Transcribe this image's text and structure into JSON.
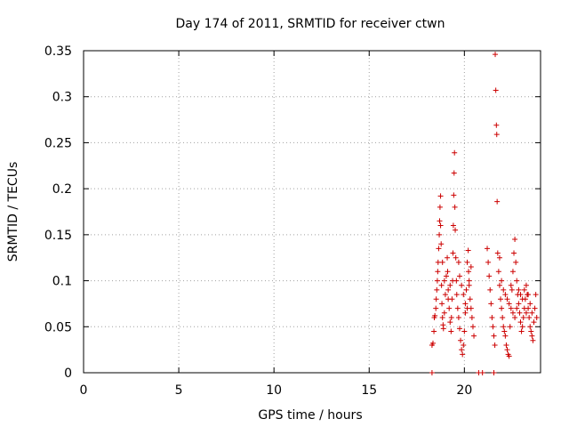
{
  "chart_data": {
    "type": "scatter",
    "title": "Day 174 of 2011, SRMTID for receiver ctwn",
    "xlabel": "GPS time / hours",
    "ylabel": "SRMTID / TECUs",
    "xlim": [
      0,
      24
    ],
    "ylim": [
      0,
      0.35
    ],
    "xticks": [
      0,
      5,
      10,
      15,
      20
    ],
    "xtick_labels": [
      "0",
      "5",
      "10",
      "15",
      "20"
    ],
    "yticks": [
      0,
      0.05,
      0.1,
      0.15,
      0.2,
      0.25,
      0.3,
      0.35
    ],
    "ytick_labels": [
      "0",
      "0.05",
      "0.1",
      "0.15",
      "0.2",
      "0.25",
      "0.3",
      "0.35"
    ],
    "grid": true,
    "marker": "+",
    "series": [
      {
        "name": "SRMTID",
        "color": "#cc0000",
        "points": [
          [
            18.3,
            0.03
          ],
          [
            18.35,
            0.032
          ],
          [
            18.4,
            0.045
          ],
          [
            18.42,
            0.06
          ],
          [
            18.45,
            0.062
          ],
          [
            18.5,
            0.07
          ],
          [
            18.52,
            0.08
          ],
          [
            18.55,
            0.09
          ],
          [
            18.58,
            0.1
          ],
          [
            18.6,
            0.11
          ],
          [
            18.62,
            0.12
          ],
          [
            18.65,
            0.135
          ],
          [
            18.68,
            0.15
          ],
          [
            18.7,
            0.165
          ],
          [
            18.72,
            0.18
          ],
          [
            18.75,
            0.192
          ],
          [
            18.78,
            0.14
          ],
          [
            18.8,
            0.095
          ],
          [
            18.82,
            0.075
          ],
          [
            18.85,
            0.06
          ],
          [
            18.88,
            0.052
          ],
          [
            18.9,
            0.048
          ],
          [
            18.95,
            0.065
          ],
          [
            19.0,
            0.085
          ],
          [
            19.05,
            0.105
          ],
          [
            19.1,
            0.125
          ],
          [
            19.12,
            0.11
          ],
          [
            19.15,
            0.09
          ],
          [
            19.2,
            0.07
          ],
          [
            19.25,
            0.055
          ],
          [
            19.3,
            0.045
          ],
          [
            19.32,
            0.06
          ],
          [
            19.35,
            0.08
          ],
          [
            19.38,
            0.1
          ],
          [
            19.4,
            0.13
          ],
          [
            19.42,
            0.16
          ],
          [
            19.44,
            0.193
          ],
          [
            19.46,
            0.217
          ],
          [
            19.48,
            0.239
          ],
          [
            19.5,
            0.18
          ],
          [
            19.52,
            0.155
          ],
          [
            19.55,
            0.125
          ],
          [
            19.58,
            0.1
          ],
          [
            19.6,
            0.085
          ],
          [
            19.65,
            0.07
          ],
          [
            19.7,
            0.06
          ],
          [
            19.75,
            0.048
          ],
          [
            19.8,
            0.035
          ],
          [
            19.85,
            0.025
          ],
          [
            19.9,
            0.02
          ],
          [
            19.95,
            0.03
          ],
          [
            20.0,
            0.045
          ],
          [
            20.05,
            0.065
          ],
          [
            20.1,
            0.09
          ],
          [
            20.15,
            0.12
          ],
          [
            20.2,
            0.133
          ],
          [
            20.22,
            0.11
          ],
          [
            20.25,
            0.095
          ],
          [
            20.3,
            0.08
          ],
          [
            20.35,
            0.07
          ],
          [
            20.4,
            0.06
          ],
          [
            20.45,
            0.05
          ],
          [
            20.5,
            0.04
          ],
          [
            19.7,
            0.12
          ],
          [
            19.75,
            0.105
          ],
          [
            19.85,
            0.095
          ],
          [
            19.95,
            0.085
          ],
          [
            20.05,
            0.075
          ],
          [
            20.15,
            0.07
          ],
          [
            20.25,
            0.1
          ],
          [
            20.35,
            0.115
          ],
          [
            19.25,
            0.095
          ],
          [
            19.15,
            0.08
          ],
          [
            18.95,
            0.1
          ],
          [
            18.85,
            0.12
          ],
          [
            18.75,
            0.16
          ],
          [
            21.2,
            0.135
          ],
          [
            21.25,
            0.12
          ],
          [
            21.3,
            0.105
          ],
          [
            21.35,
            0.09
          ],
          [
            21.4,
            0.075
          ],
          [
            21.45,
            0.06
          ],
          [
            21.5,
            0.05
          ],
          [
            21.55,
            0.04
          ],
          [
            21.6,
            0.03
          ],
          [
            21.62,
            0.346
          ],
          [
            21.65,
            0.307
          ],
          [
            21.68,
            0.269
          ],
          [
            21.7,
            0.259
          ],
          [
            21.72,
            0.186
          ],
          [
            21.75,
            0.13
          ],
          [
            21.8,
            0.11
          ],
          [
            21.85,
            0.095
          ],
          [
            21.9,
            0.08
          ],
          [
            21.95,
            0.07
          ],
          [
            22.0,
            0.06
          ],
          [
            22.05,
            0.05
          ],
          [
            22.1,
            0.045
          ],
          [
            22.15,
            0.04
          ],
          [
            22.2,
            0.03
          ],
          [
            22.25,
            0.025
          ],
          [
            22.3,
            0.02
          ],
          [
            22.35,
            0.018
          ],
          [
            22.4,
            0.05
          ],
          [
            22.45,
            0.07
          ],
          [
            22.5,
            0.09
          ],
          [
            22.55,
            0.11
          ],
          [
            22.6,
            0.13
          ],
          [
            22.65,
            0.145
          ],
          [
            22.7,
            0.12
          ],
          [
            22.75,
            0.1
          ],
          [
            22.8,
            0.085
          ],
          [
            22.85,
            0.075
          ],
          [
            22.9,
            0.065
          ],
          [
            22.95,
            0.055
          ],
          [
            23.0,
            0.045
          ],
          [
            23.05,
            0.05
          ],
          [
            23.1,
            0.06
          ],
          [
            23.15,
            0.07
          ],
          [
            23.2,
            0.08
          ],
          [
            23.25,
            0.095
          ],
          [
            23.3,
            0.085
          ],
          [
            23.35,
            0.07
          ],
          [
            23.4,
            0.06
          ],
          [
            23.45,
            0.05
          ],
          [
            23.5,
            0.045
          ],
          [
            23.55,
            0.04
          ],
          [
            23.6,
            0.035
          ],
          [
            23.65,
            0.055
          ],
          [
            23.7,
            0.07
          ],
          [
            23.75,
            0.085
          ],
          [
            23.8,
            0.06
          ],
          [
            21.85,
            0.125
          ],
          [
            21.95,
            0.1
          ],
          [
            22.05,
            0.09
          ],
          [
            22.15,
            0.085
          ],
          [
            22.25,
            0.08
          ],
          [
            22.35,
            0.075
          ],
          [
            22.45,
            0.095
          ],
          [
            22.55,
            0.065
          ],
          [
            22.65,
            0.06
          ],
          [
            22.75,
            0.07
          ],
          [
            22.85,
            0.09
          ],
          [
            22.95,
            0.085
          ],
          [
            23.05,
            0.08
          ],
          [
            23.15,
            0.09
          ],
          [
            23.25,
            0.065
          ],
          [
            23.35,
            0.085
          ],
          [
            23.45,
            0.075
          ],
          [
            23.55,
            0.065
          ],
          [
            18.3,
            0.0
          ],
          [
            20.75,
            0.0
          ],
          [
            20.95,
            0.0
          ],
          [
            21.55,
            0.0
          ]
        ]
      }
    ]
  }
}
